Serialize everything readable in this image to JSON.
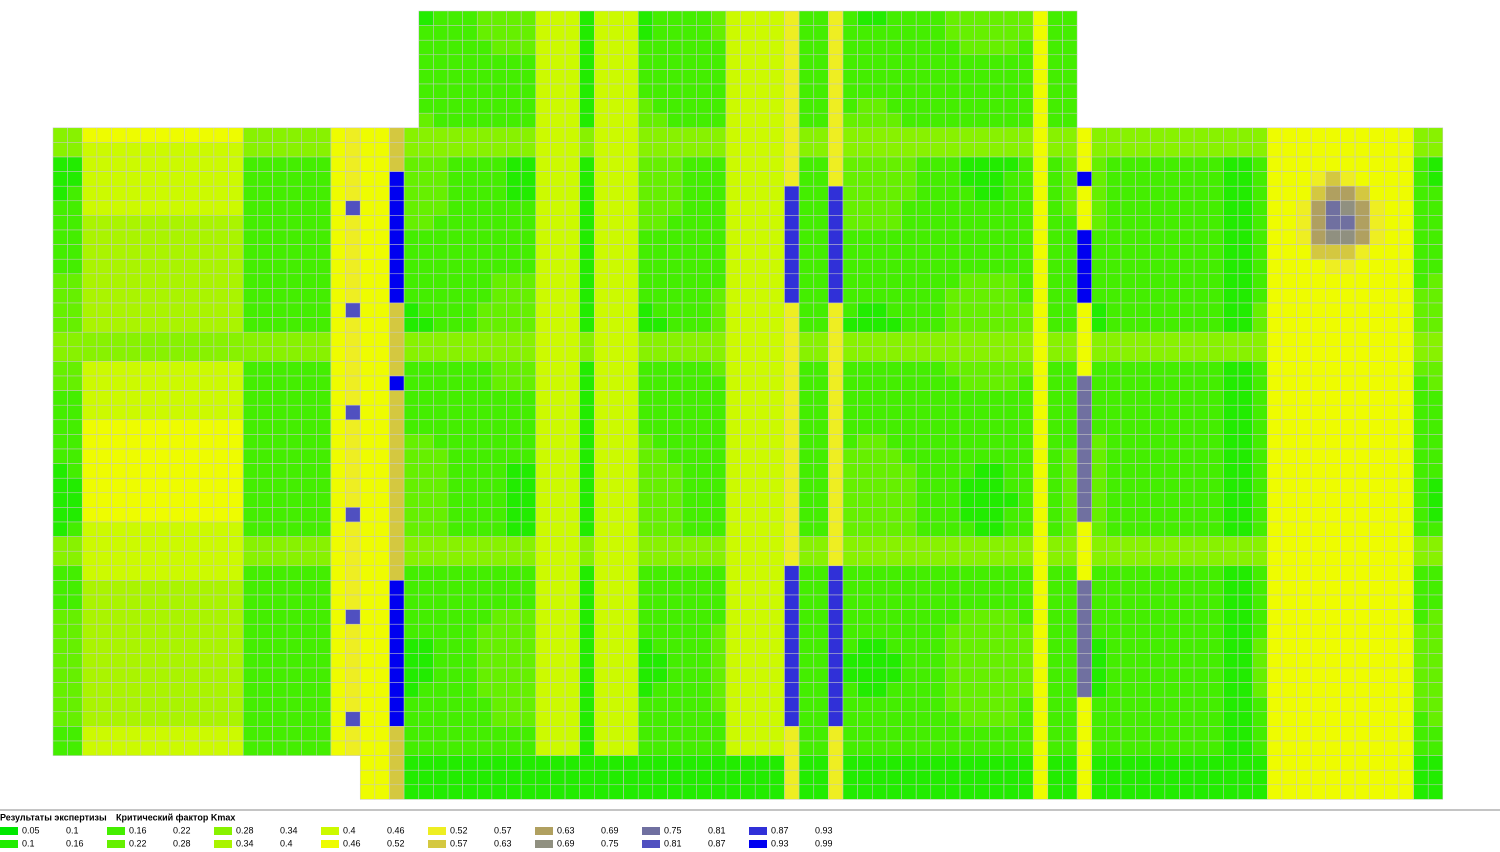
{
  "legend": {
    "title": "Результаты экспертизы",
    "subtitle": "Критический фактор Kmax",
    "items": [
      {
        "from": 0.05,
        "to": 0.1,
        "color": "#00e800"
      },
      {
        "from": 0.1,
        "to": 0.16,
        "color": "#22ec00"
      },
      {
        "from": 0.16,
        "to": 0.22,
        "color": "#44ee00"
      },
      {
        "from": 0.22,
        "to": 0.28,
        "color": "#66f000"
      },
      {
        "from": 0.28,
        "to": 0.34,
        "color": "#88f200"
      },
      {
        "from": 0.34,
        "to": 0.4,
        "color": "#aaf400"
      },
      {
        "from": 0.4,
        "to": 0.46,
        "color": "#ccfa00"
      },
      {
        "from": 0.46,
        "to": 0.52,
        "color": "#eefc00"
      },
      {
        "from": 0.52,
        "to": 0.57,
        "color": "#eeee22"
      },
      {
        "from": 0.57,
        "to": 0.63,
        "color": "#d4c840"
      },
      {
        "from": 0.63,
        "to": 0.69,
        "color": "#b0a060"
      },
      {
        "from": 0.69,
        "to": 0.75,
        "color": "#909080"
      },
      {
        "from": 0.75,
        "to": 0.81,
        "color": "#7070a0"
      },
      {
        "from": 0.81,
        "to": 0.87,
        "color": "#5050c0"
      },
      {
        "from": 0.87,
        "to": 0.93,
        "color": "#3030d8"
      },
      {
        "from": 0.93,
        "to": 0.99,
        "color": "#0000f0"
      }
    ]
  }
}
